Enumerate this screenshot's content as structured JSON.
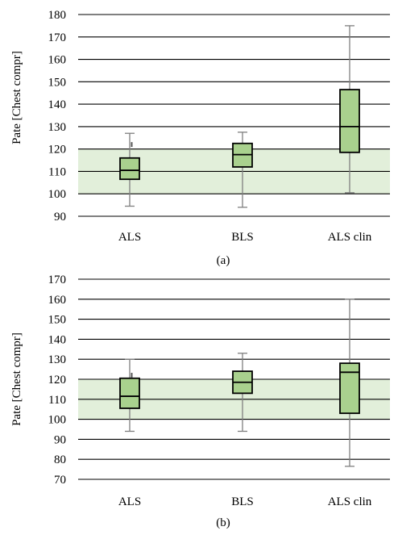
{
  "chart_data": [
    {
      "type": "box",
      "panel_label": "(a)",
      "ylabel": "Pate [Chest compr]",
      "ylim": [
        90,
        180
      ],
      "yticks": [
        90,
        100,
        110,
        120,
        130,
        140,
        150,
        160,
        170,
        180
      ],
      "grid": true,
      "highlight_band": [
        100,
        120
      ],
      "categories": [
        "ALS",
        "BLS",
        "ALS clin"
      ],
      "boxes": [
        {
          "min": 94.5,
          "q1": 106.5,
          "median": 110.5,
          "q3": 116,
          "max": 127,
          "outliers": [
            122
          ]
        },
        {
          "min": 94,
          "q1": 112,
          "median": 117.5,
          "q3": 122.5,
          "max": 127.5,
          "outliers": []
        },
        {
          "min": 100.5,
          "q1": 118.5,
          "median": 130,
          "q3": 146.5,
          "max": 175,
          "outliers": []
        }
      ]
    },
    {
      "type": "box",
      "panel_label": "(b)",
      "ylabel": "Pate [Chest compr]",
      "ylim": [
        70,
        170
      ],
      "yticks": [
        70,
        80,
        90,
        100,
        110,
        120,
        130,
        140,
        150,
        160,
        170
      ],
      "grid": true,
      "highlight_band": [
        100,
        120
      ],
      "categories": [
        "ALS",
        "BLS",
        "ALS clin"
      ],
      "boxes": [
        {
          "min": 94,
          "q1": 105.5,
          "median": 111.5,
          "q3": 120.5,
          "max": 130,
          "outliers": [
            122
          ]
        },
        {
          "min": 94,
          "q1": 113,
          "median": 118.5,
          "q3": 124,
          "max": 133,
          "outliers": []
        },
        {
          "min": 76.5,
          "q1": 103,
          "median": 123.5,
          "q3": 128,
          "max": 160,
          "outliers": []
        }
      ]
    }
  ],
  "colors": {
    "box_fill": "#a9d18e",
    "band_fill": "#e2efda",
    "whisker": "#7f7f7f",
    "grid": "#000000",
    "text": "#000000"
  }
}
